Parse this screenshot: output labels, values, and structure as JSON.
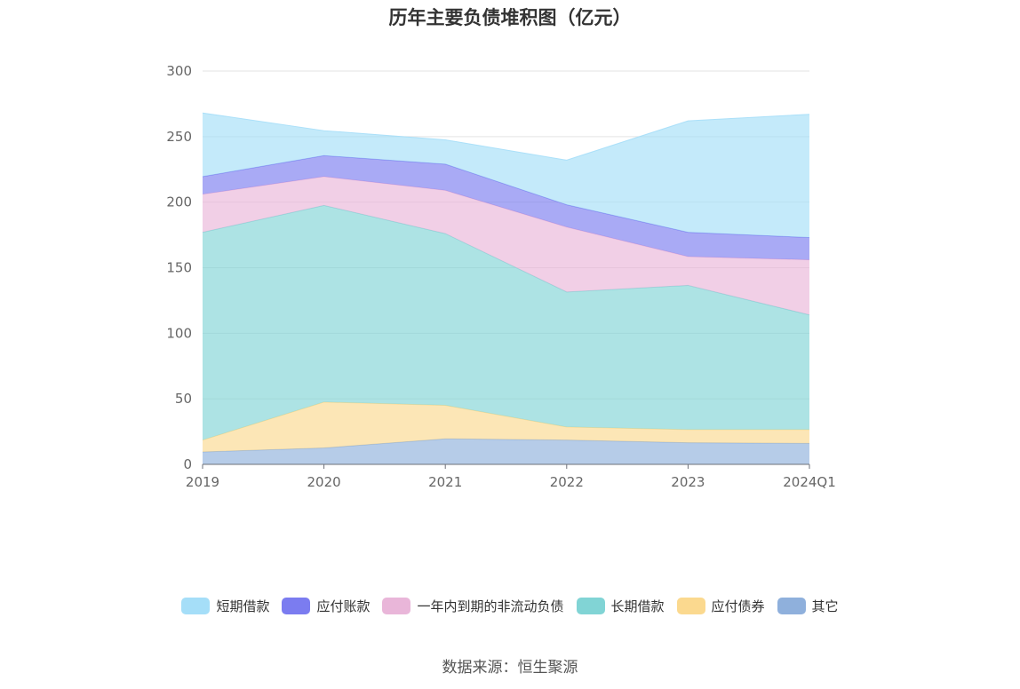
{
  "chart_data": {
    "type": "area",
    "stacked": true,
    "title": "历年主要负债堆积图（亿元）",
    "xlabel": "",
    "ylabel": "",
    "x": [
      "2019",
      "2020",
      "2021",
      "2022",
      "2023",
      "2024Q1"
    ],
    "ylim": [
      0,
      300
    ],
    "yticks": [
      0,
      50,
      100,
      150,
      200,
      250,
      300
    ],
    "grid": true,
    "legend_position": "bottom",
    "series": [
      {
        "name": "其它",
        "color": "#8fb0dc",
        "values": [
          9.5,
          12.5,
          19.5,
          18.5,
          16.5,
          16
        ]
      },
      {
        "name": "应付债券",
        "color": "#fbd98f",
        "values": [
          9,
          35,
          25.5,
          10,
          10,
          10.5
        ]
      },
      {
        "name": "长期借款",
        "color": "#81d4d5",
        "values": [
          158.5,
          150,
          131,
          103,
          110,
          87.5
        ]
      },
      {
        "name": "一年内到期的非流动负债",
        "color": "#e9b6d9",
        "values": [
          29,
          22,
          33,
          49.5,
          22,
          42
        ]
      },
      {
        "name": "应付账款",
        "color": "#7b7cf0",
        "values": [
          13.5,
          16,
          20,
          17,
          18.5,
          17
        ]
      },
      {
        "name": "短期借款",
        "color": "#a5def8",
        "values": [
          48.5,
          19,
          18.5,
          34,
          85,
          94
        ]
      }
    ],
    "legend_order": [
      "短期借款",
      "应付账款",
      "一年内到期的非流动负债",
      "长期借款",
      "应付债券",
      "其它"
    ]
  },
  "source_note": "数据来源：恒生聚源"
}
